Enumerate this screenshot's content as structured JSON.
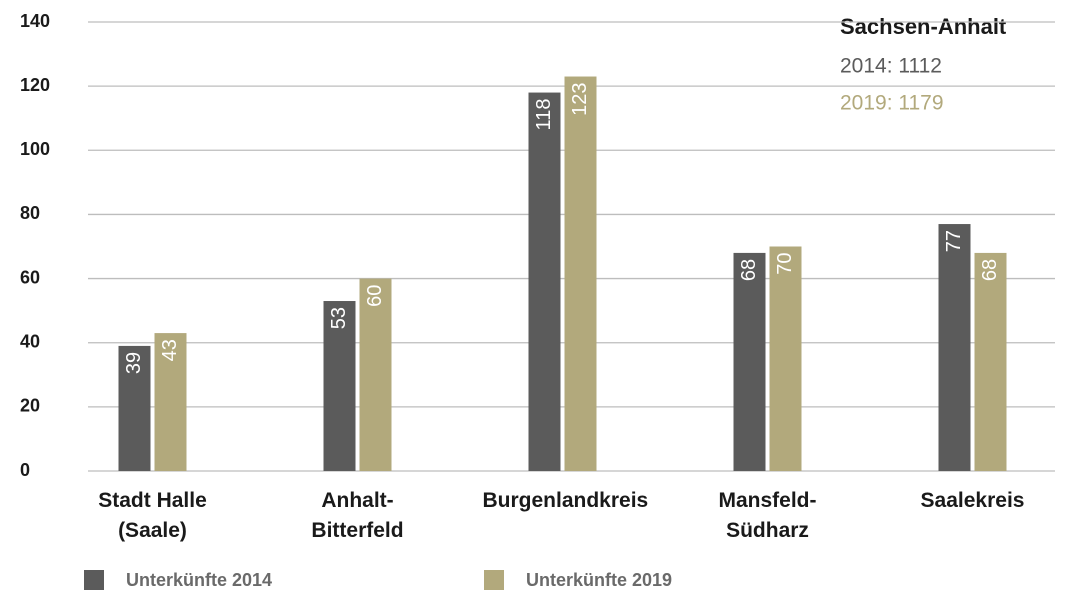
{
  "chart_data": {
    "type": "bar",
    "categories": [
      "Stadt Halle (Saale)",
      "Anhalt-Bitterfeld",
      "Burgenlandkreis",
      "Mansfeld-Südharz",
      "Saalekreis"
    ],
    "series": [
      {
        "name": "Unterkünfte 2014",
        "color": "#5b5b5b",
        "values": [
          39,
          53,
          118,
          68,
          77
        ]
      },
      {
        "name": "Unterkünfte 2019",
        "color": "#b2a97c",
        "values": [
          43,
          60,
          123,
          70,
          68
        ]
      }
    ],
    "ylim": [
      0,
      140
    ],
    "yticks": [
      0,
      20,
      40,
      60,
      80,
      100,
      120,
      140
    ],
    "grid": true,
    "annotations": [
      "Sachsen-Anhalt",
      "2014: 1112",
      "2019: 1179"
    ]
  }
}
